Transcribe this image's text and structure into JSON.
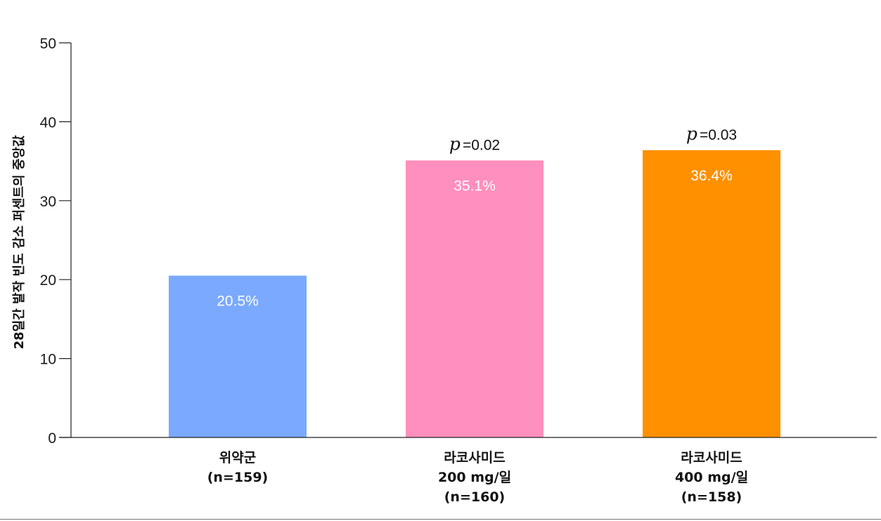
{
  "chart_data": {
    "type": "bar",
    "ylabel": "28일간 발작 빈도 감소 퍼센트의 중앙값",
    "xlabel": "",
    "ylim": [
      0,
      50
    ],
    "yticks": [
      0,
      10,
      20,
      30,
      40,
      50
    ],
    "grid": false,
    "categories": [
      {
        "lines": [
          "위약군",
          "(n=159)"
        ]
      },
      {
        "lines": [
          "라코사미드",
          "200 mg/일",
          "(n=160)"
        ]
      },
      {
        "lines": [
          "라코사미드",
          "400 mg/일",
          "(n=158)"
        ]
      }
    ],
    "values": [
      20.5,
      35.1,
      36.4
    ],
    "data_labels": [
      "20.5%",
      "35.1%",
      "36.4%"
    ],
    "colors": [
      "#7aa9ff",
      "#ff8fbd",
      "#ff9000"
    ],
    "annotations": [
      null,
      {
        "symbol": "p",
        "text": "=0.02"
      },
      {
        "symbol": "p",
        "text": "=0.03"
      }
    ]
  }
}
